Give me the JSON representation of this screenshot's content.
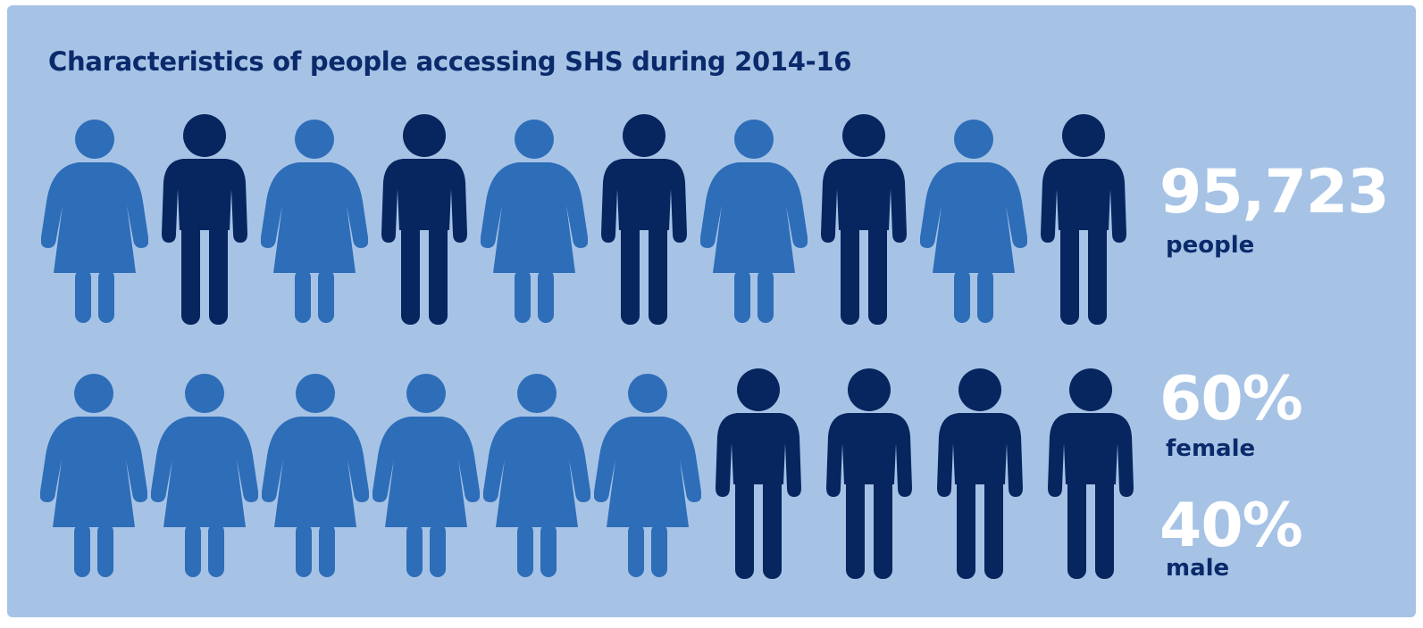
{
  "title": "Characteristics of people accessing SHS during 2014-16",
  "colors": {
    "background": "#a6c3e6",
    "female_figure": "#2e6db8",
    "male_figure": "#07255f",
    "title_text": "#0b2a6b",
    "stat_value_text": "#ffffff"
  },
  "figures": {
    "top_row": [
      "female",
      "male",
      "female",
      "male",
      "female",
      "male",
      "female",
      "male",
      "female",
      "male"
    ],
    "bottom_row": [
      "female",
      "female",
      "female",
      "female",
      "female",
      "female",
      "male",
      "male",
      "male",
      "male"
    ]
  },
  "stats": {
    "people_count": {
      "value": "95,723",
      "label": "people"
    },
    "female_share": {
      "value": "60%",
      "label": "female"
    },
    "male_share": {
      "value": "40%",
      "label": "male"
    }
  }
}
